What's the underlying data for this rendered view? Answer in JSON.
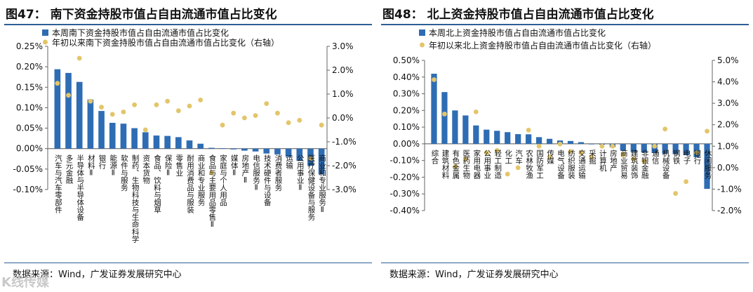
{
  "watermark": "K线传媒",
  "chart_data": [
    {
      "type": "bar+scatter",
      "title_prefix": "图47",
      "title": "南下资金持股市值占自由流通市值占比变化",
      "legend": {
        "bar": "本周南下资金持股市值占自由流通市值占比变化",
        "dot": "年初以来南下资金持股市值占自由流通市值占比变化（右轴）"
      },
      "source": "数据来源：Wind，广发证券发展研究中心",
      "ylim_left": [
        -0.1,
        0.25
      ],
      "yticks_left": [
        "0.25%",
        "0.20%",
        "0.15%",
        "0.10%",
        "0.05%",
        "0.00%",
        "-0.05%",
        "-0.10%"
      ],
      "ylim_right": [
        -3.0,
        3.0
      ],
      "yticks_right": [
        "3.0%",
        "2.0%",
        "1.0%",
        "0.0%",
        "-1.0%",
        "-2.0%",
        "-3.0%"
      ],
      "categories": [
        "汽车与汽车零部件",
        "多元金融",
        "半导体与半导体设备",
        "材料Ⅱ",
        "银行",
        "能源Ⅱ",
        "软件与服务",
        "制药、生物科技与生命科学",
        "资本货物",
        "食品、饮料与烟草",
        "保险Ⅱ",
        "零售业",
        "耐用消费品与服装",
        "商业和专业服务",
        "食品与主要用品零售Ⅱ",
        "家庭与个人用品",
        "媒体Ⅱ",
        "房地产Ⅱ",
        "电信服务Ⅱ",
        "技术硬件与设备",
        "消费者服务",
        "运输",
        "公用事业Ⅱ",
        "医疗保健设备与服务",
        "商业和专业服务Ⅱ"
      ],
      "bar_values": [
        0.194,
        0.185,
        0.163,
        0.12,
        0.092,
        0.063,
        0.061,
        0.05,
        0.04,
        0.032,
        0.031,
        0.028,
        0.02,
        0.012,
        0.002,
        0.001,
        -0.002,
        -0.005,
        -0.007,
        -0.012,
        -0.014,
        -0.02,
        -0.03,
        -0.042,
        -0.063
      ],
      "dot_values": [
        1.45,
        0.95,
        2.5,
        0.7,
        0.45,
        0.15,
        0.25,
        0.55,
        -0.5,
        0.55,
        0.7,
        0.3,
        0.5,
        0.75,
        -2.3,
        -0.3,
        0.2,
        0.0,
        0.1,
        0.6,
        0.2,
        -0.2,
        -0.1,
        -1.7,
        -0.3
      ]
    },
    {
      "type": "bar+scatter",
      "title_prefix": "图48",
      "title": "北上资金持股市值占自由流通市值占比变化",
      "legend": {
        "bar": "本周北上资金持股市值占自由流通市值占比变化",
        "dot": "年初以来北上资金持股市值占自由流通市值占比变化（右轴）"
      },
      "source": "数据来源：Wind，广发证券发展研究中心",
      "ylim_left": [
        -0.4,
        0.5
      ],
      "yticks_left": [
        "0.50%",
        "0.40%",
        "0.30%",
        "0.20%",
        "0.10%",
        "0.00%",
        "-0.10%",
        "-0.20%",
        "-0.30%",
        "-0.40%"
      ],
      "ylim_right": [
        -2.0,
        5.0
      ],
      "yticks_right": [
        "5.0%",
        "4.0%",
        "3.0%",
        "2.0%",
        "1.0%",
        "0.0%",
        "-1.0%",
        "-2.0%"
      ],
      "categories": [
        "综合",
        "建筑材料",
        "有色金属",
        "医药生物",
        "家用电器",
        "公用事业",
        "轻工制造",
        "化工",
        "汽车",
        "农林牧渔",
        "国防军工",
        "传媒",
        "电气设备",
        "纺织服装",
        "交通运输",
        "采掘",
        "计算机",
        "房地产",
        "商业贸易",
        "建筑装饰",
        "非银金融",
        "通信",
        "机械设备",
        "钢铁",
        "电子",
        "银行",
        "休闲服务"
      ],
      "bar_values": [
        0.42,
        0.31,
        0.2,
        0.17,
        0.11,
        0.085,
        0.078,
        0.07,
        0.058,
        0.057,
        0.04,
        0.03,
        0.02,
        0.017,
        0.01,
        -0.003,
        -0.005,
        -0.02,
        -0.04,
        -0.05,
        -0.052,
        -0.055,
        -0.06,
        -0.062,
        -0.068,
        -0.08,
        -0.27
      ],
      "dot_values": [
        4.1,
        2.5,
        0.05,
        0.4,
        2.6,
        0.7,
        0.8,
        -0.3,
        0.0,
        1.75,
        1.0,
        0.5,
        1.1,
        0.75,
        0.7,
        0.5,
        1.0,
        1.0,
        0.6,
        0.4,
        0.3,
        1.0,
        1.8,
        -1.2,
        -0.65,
        0.7,
        1.7
      ]
    }
  ]
}
